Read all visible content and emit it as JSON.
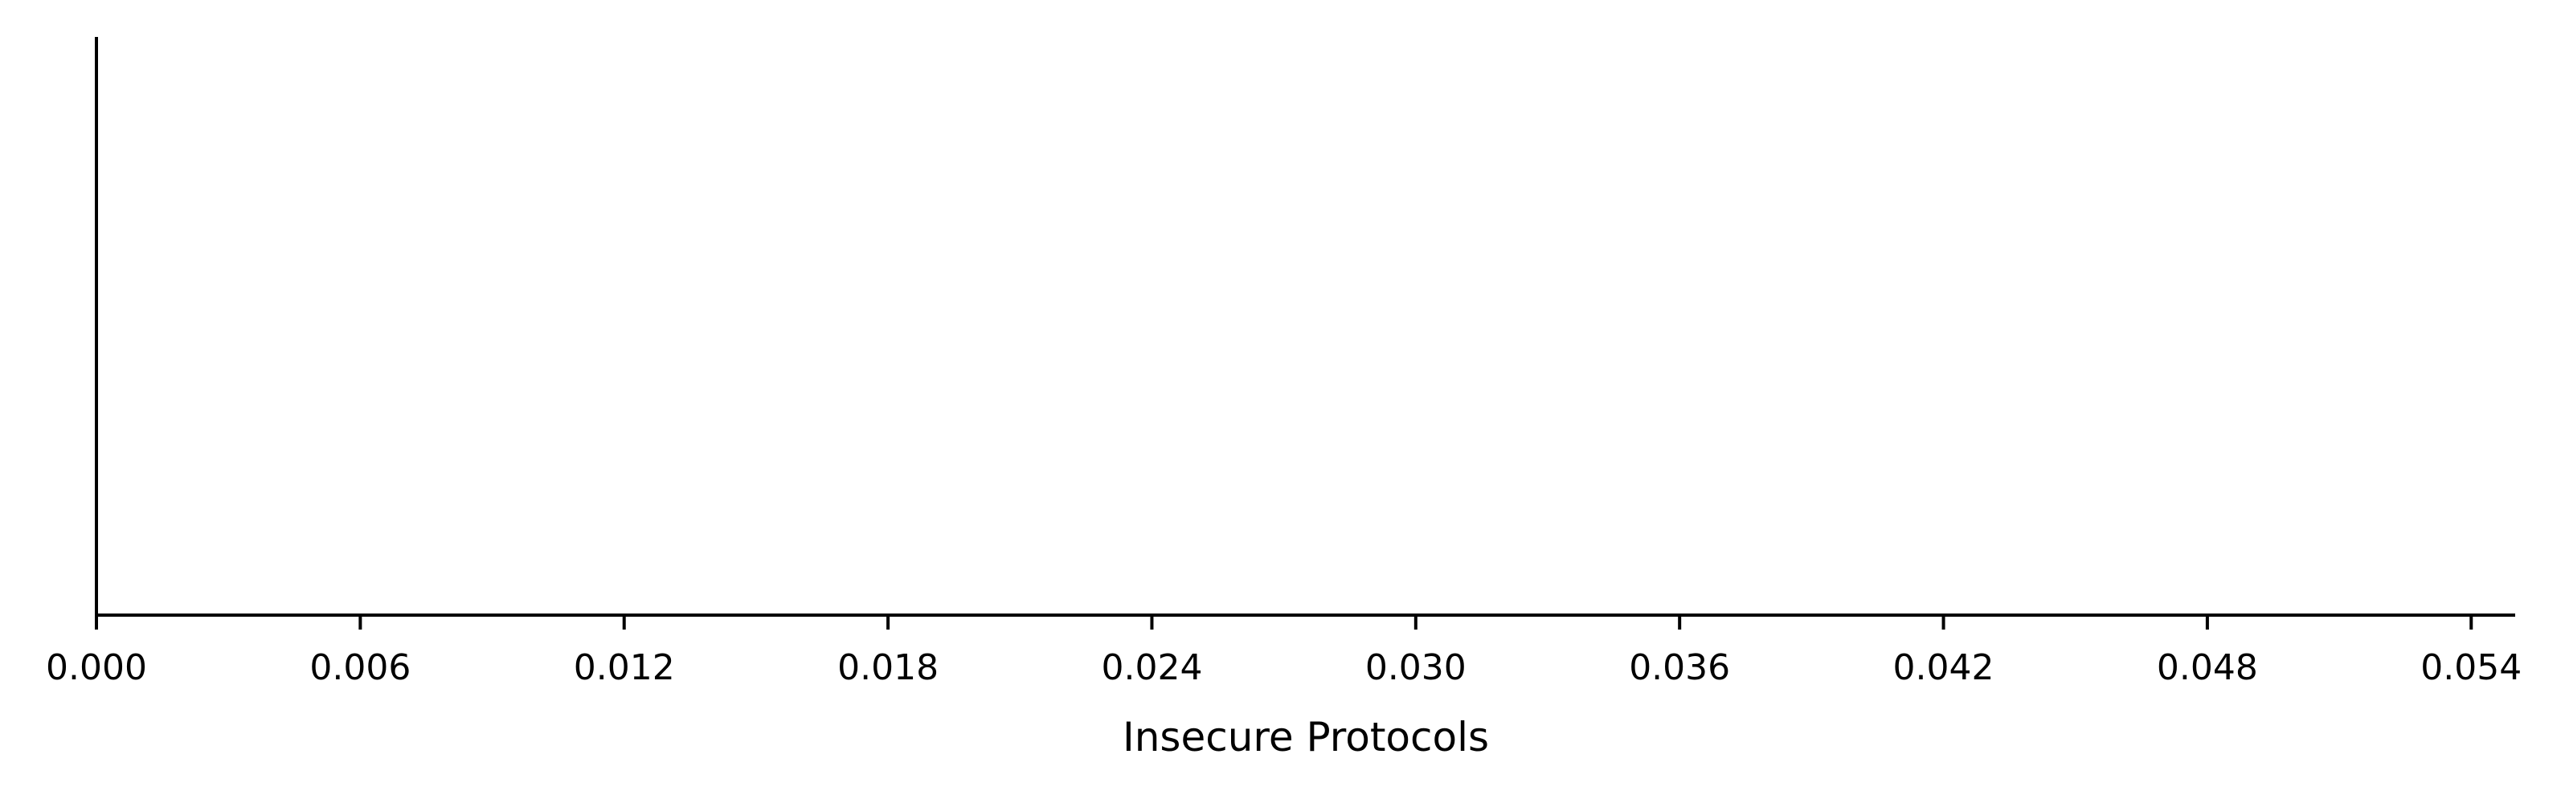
{
  "chart_data": {
    "type": "scatter",
    "title": "",
    "xlabel": "Insecure Protocols",
    "ylabel": "",
    "xlim": [
      0,
      0.055
    ],
    "ticks": [
      "0.000",
      "0.006",
      "0.012",
      "0.018",
      "0.024",
      "0.030",
      "0.036",
      "0.042",
      "0.048",
      "0.054"
    ],
    "tick_values": [
      0,
      0.006,
      0.012,
      0.018,
      0.024,
      0.03,
      0.036,
      0.042,
      0.048,
      0.054
    ],
    "grid": false,
    "series": []
  },
  "colors": {
    "axis": "#000000",
    "background": "#ffffff"
  }
}
